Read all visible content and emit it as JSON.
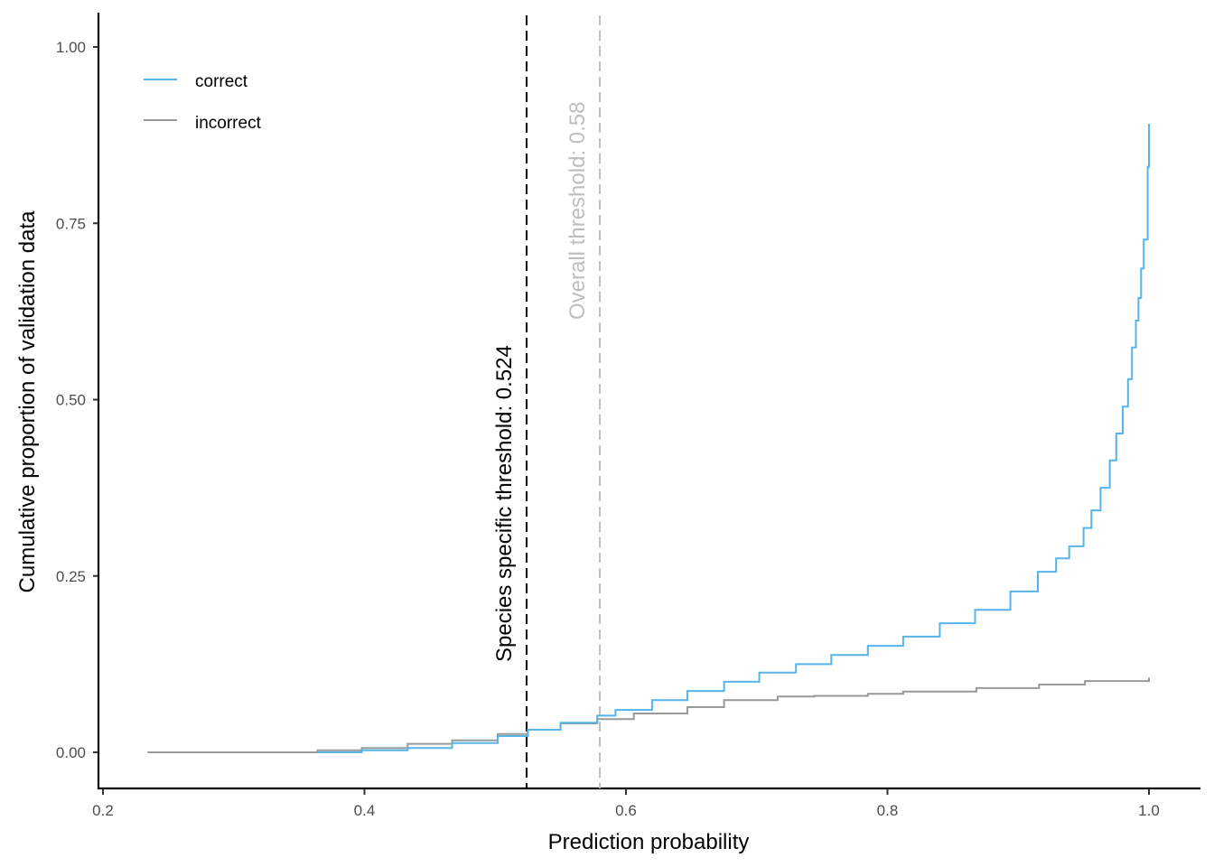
{
  "chart_data": {
    "type": "line",
    "subtype": "step-ecdf",
    "title": "",
    "xlabel": "Prediction probability",
    "ylabel": "Cumulative proportion of validation data",
    "xlim": [
      0.19,
      1.04
    ],
    "ylim": [
      -0.05,
      1.05
    ],
    "x_ticks": [
      0.2,
      0.4,
      0.6,
      0.8,
      1.0
    ],
    "x_tick_labels": [
      "0.2",
      "0.4",
      "0.6",
      "0.8",
      "1.0"
    ],
    "y_ticks": [
      0.0,
      0.25,
      0.5,
      0.75,
      1.0
    ],
    "y_tick_labels": [
      "0.00",
      "0.25",
      "0.50",
      "0.75",
      "1.00"
    ],
    "grid": false,
    "legend_position": "top-left inside",
    "legend": [
      {
        "label": "correct",
        "color": "#56B4E9"
      },
      {
        "label": "incorrect",
        "color": "#999999"
      }
    ],
    "series": [
      {
        "name": "correct",
        "color": "#56B4E9",
        "x": [
          0.364,
          0.398,
          0.433,
          0.467,
          0.502,
          0.525,
          0.547,
          0.567,
          0.595,
          0.622,
          0.65,
          0.678,
          0.705,
          0.733,
          0.76,
          0.788,
          0.816,
          0.843,
          0.871,
          0.899,
          0.933,
          0.954,
          0.975,
          0.985,
          0.996,
          1.003,
          1.01,
          1.018,
          1.026,
          1.033,
          1.037,
          1.041,
          1.043,
          1.045,
          1.047,
          1.049,
          1.049
        ],
        "x_note": "x values clipped to 1.0 in rendering; plotted relative",
        "points": [
          [
            0.364,
            0.0
          ],
          [
            0.398,
            0.003
          ],
          [
            0.433,
            0.006
          ],
          [
            0.467,
            0.013
          ],
          [
            0.502,
            0.023
          ],
          [
            0.525,
            0.032
          ],
          [
            0.55,
            0.042
          ],
          [
            0.578,
            0.052
          ],
          [
            0.592,
            0.06
          ],
          [
            0.62,
            0.074
          ],
          [
            0.647,
            0.087
          ],
          [
            0.675,
            0.1
          ],
          [
            0.702,
            0.113
          ],
          [
            0.73,
            0.125
          ],
          [
            0.757,
            0.138
          ],
          [
            0.785,
            0.151
          ],
          [
            0.812,
            0.164
          ],
          [
            0.84,
            0.183
          ],
          [
            0.867,
            0.202
          ],
          [
            0.894,
            0.228
          ],
          [
            0.915,
            0.256
          ],
          [
            0.929,
            0.275
          ],
          [
            0.939,
            0.292
          ],
          [
            0.95,
            0.318
          ],
          [
            0.956,
            0.343
          ],
          [
            0.963,
            0.375
          ],
          [
            0.97,
            0.414
          ],
          [
            0.975,
            0.452
          ],
          [
            0.98,
            0.49
          ],
          [
            0.984,
            0.529
          ],
          [
            0.987,
            0.574
          ],
          [
            0.99,
            0.612
          ],
          [
            0.992,
            0.644
          ],
          [
            0.994,
            0.686
          ],
          [
            0.996,
            0.727
          ],
          [
            0.999,
            0.83
          ],
          [
            1.0,
            0.891
          ]
        ]
      },
      {
        "name": "incorrect",
        "color": "#999999",
        "points": [
          [
            0.234,
            0.0
          ],
          [
            0.315,
            0.0
          ],
          [
            0.364,
            0.003
          ],
          [
            0.398,
            0.006
          ],
          [
            0.433,
            0.012
          ],
          [
            0.467,
            0.017
          ],
          [
            0.502,
            0.026
          ],
          [
            0.525,
            0.032
          ],
          [
            0.55,
            0.041
          ],
          [
            0.578,
            0.047
          ],
          [
            0.606,
            0.055
          ],
          [
            0.647,
            0.064
          ],
          [
            0.675,
            0.074
          ],
          [
            0.716,
            0.079
          ],
          [
            0.744,
            0.08
          ],
          [
            0.785,
            0.083
          ],
          [
            0.812,
            0.086
          ],
          [
            0.868,
            0.091
          ],
          [
            0.916,
            0.096
          ],
          [
            0.951,
            0.101
          ],
          [
            1.0,
            0.106
          ]
        ]
      }
    ],
    "annotations": [
      {
        "type": "vline",
        "x": 0.524,
        "style": "dashed",
        "color": "#000000",
        "label": "Species specific threshold: 0.524"
      },
      {
        "type": "vline",
        "x": 0.58,
        "style": "dashed",
        "color": "#BEBEBE",
        "label": "Overall threshold: 0.58"
      }
    ]
  },
  "labels": {
    "xlabel": "Prediction probability",
    "ylabel": "Cumulative proportion of validation data",
    "species_threshold": "Species specific threshold: 0.524",
    "overall_threshold": "Overall threshold: 0.58",
    "legend_correct": "correct",
    "legend_incorrect": "incorrect"
  },
  "colors": {
    "correct": "#56B4E9",
    "incorrect": "#999999",
    "species_line": "#000000",
    "overall_line": "#BEBEBE",
    "axis": "#000000",
    "tick_text": "#4d4d4d"
  }
}
